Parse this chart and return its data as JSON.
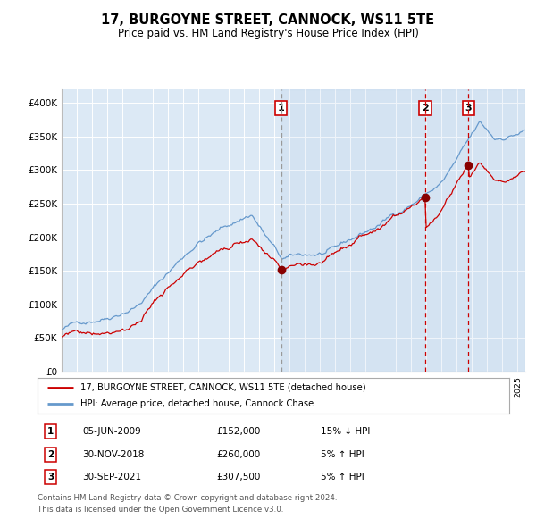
{
  "title": "17, BURGOYNE STREET, CANNOCK, WS11 5TE",
  "subtitle": "Price paid vs. HM Land Registry's House Price Index (HPI)",
  "background_color": "#ffffff",
  "plot_bg_color": "#dce9f5",
  "grid_color": "#ffffff",
  "ylim": [
    0,
    420000
  ],
  "yticks": [
    0,
    50000,
    100000,
    150000,
    200000,
    250000,
    300000,
    350000,
    400000
  ],
  "ytick_labels": [
    "£0",
    "£50K",
    "£100K",
    "£150K",
    "£200K",
    "£250K",
    "£300K",
    "£350K",
    "£400K"
  ],
  "legend_line1": "17, BURGOYNE STREET, CANNOCK, WS11 5TE (detached house)",
  "legend_line2": "HPI: Average price, detached house, Cannock Chase",
  "sale_color": "#cc0000",
  "hpi_color": "#6699cc",
  "annotation_box_color": "#cc0000",
  "sale_marker_color": "#880000",
  "footnote1": "Contains HM Land Registry data © Crown copyright and database right 2024.",
  "footnote2": "This data is licensed under the Open Government Licence v3.0.",
  "transactions": [
    {
      "num": 1,
      "date_label": "05-JUN-2009",
      "price": "£152,000",
      "relation": "15% ↓ HPI",
      "year_x": 2009.43
    },
    {
      "num": 2,
      "date_label": "30-NOV-2018",
      "price": "£260,000",
      "relation": "5% ↑ HPI",
      "year_x": 2018.92
    },
    {
      "num": 3,
      "date_label": "30-SEP-2021",
      "price": "£307,500",
      "relation": "5% ↑ HPI",
      "year_x": 2021.75
    }
  ],
  "xmin": 1995.0,
  "xmax": 2025.5
}
